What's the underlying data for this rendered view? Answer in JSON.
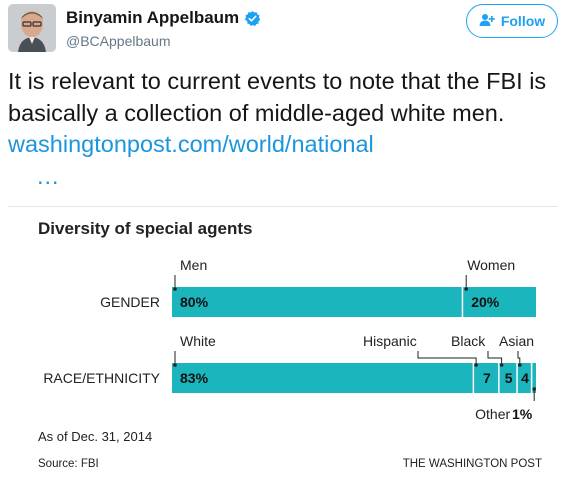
{
  "tweet": {
    "author_name": "Binyamin Appelbaum",
    "handle": "@BCAppelbaum",
    "follow_label": "Follow",
    "text": "It is relevant to current events to note that the FBI is basically a collection of middle-aged white men. ",
    "link_text": "washingtonpost.com/world/national",
    "link_more": "…",
    "link_color": "#1b95e0",
    "icons": {
      "verified": "verified-badge-icon",
      "follow": "add-user-icon",
      "avatar": "avatar"
    }
  },
  "chart_data": {
    "type": "bar",
    "title": "Diversity of special agents",
    "note": "As of Dec. 31, 2014",
    "source": "Source: FBI",
    "credit": "THE WASHINGTON POST",
    "bar_color": "#1ab5bd",
    "xlim": [
      0,
      100
    ],
    "rows": [
      {
        "label": "GENDER",
        "segments": [
          {
            "name": "Men",
            "value": 80,
            "label": "80%"
          },
          {
            "name": "Women",
            "value": 20,
            "label": "20%"
          }
        ]
      },
      {
        "label": "RACE/ETHNICITY",
        "segments": [
          {
            "name": "White",
            "value": 83,
            "label": "83%"
          },
          {
            "name": "Hispanic",
            "value": 7,
            "label": "7"
          },
          {
            "name": "Black",
            "value": 5,
            "label": "5"
          },
          {
            "name": "Asian",
            "value": 4,
            "label": "4"
          },
          {
            "name": "Other",
            "value": 1,
            "label": "1%"
          }
        ]
      }
    ]
  }
}
